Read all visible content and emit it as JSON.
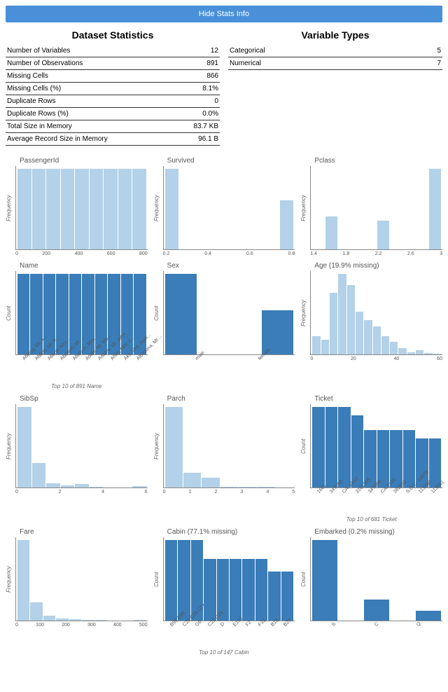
{
  "button_label": "Hide Stats Info",
  "colors": {
    "light": "#b3d1e8",
    "dark": "#3a7db8",
    "btn": "#4a90d9"
  },
  "stats": {
    "left": {
      "title": "Dataset Statistics",
      "rows": [
        [
          "Number of Variables",
          "12"
        ],
        [
          "Number of Observations",
          "891"
        ],
        [
          "Missing Cells",
          "866"
        ],
        [
          "Missing Cells (%)",
          "8.1%"
        ],
        [
          "Duplicate Rows",
          "0"
        ],
        [
          "Duplicate Rows (%)",
          "0.0%"
        ],
        [
          "Total Size in Memory",
          "83.7 KB"
        ],
        [
          "Average Record Size in Memory",
          "96.1 B"
        ]
      ]
    },
    "right": {
      "title": "Variable Types",
      "rows": [
        [
          "Categorical",
          "5"
        ],
        [
          "Numerical",
          "7"
        ]
      ]
    }
  },
  "charts": [
    {
      "title": "PassengerId",
      "ylabel": "Frequency",
      "color": "light",
      "values": [
        98,
        98,
        98,
        98,
        98,
        98,
        98,
        98,
        98
      ],
      "xticks": [
        "0",
        "200",
        "400",
        "600",
        "800"
      ],
      "rot": false,
      "caption": ""
    },
    {
      "title": "Survived",
      "ylabel": "Frequency",
      "color": "light",
      "values": [
        98,
        0,
        0,
        0,
        0,
        0,
        0,
        0,
        60
      ],
      "xticks": [
        "0.2",
        "0.4",
        "0.6",
        "0.8"
      ],
      "rot": false,
      "caption": ""
    },
    {
      "title": "Pclass",
      "ylabel": "Frequency",
      "color": "light",
      "values": [
        0,
        40,
        0,
        0,
        0,
        35,
        0,
        0,
        0,
        98
      ],
      "xticks": [
        "1.4",
        "1.8",
        "2.2",
        "2.6",
        "3"
      ],
      "rot": false,
      "caption": ""
    },
    {
      "title": "Name",
      "ylabel": "Count",
      "color": "dark",
      "values": [
        98,
        98,
        98,
        98,
        98,
        98,
        98,
        98,
        98,
        98
      ],
      "xticks": [
        "Abbing, Mr. A...",
        "Abbott, Mr. R...",
        "Abbott, Mrs. ...",
        "Abelson, Mr. ...",
        "Abelson, Mrs....",
        "Adahl, Mr. Ma...",
        "Adams, Mr. John",
        "Ahlin, Mrs. J...",
        "Aks, Mrs. Sam...",
        "Albimona, Mr...."
      ],
      "rot": true,
      "caption": "Top 10 of 891 Name"
    },
    {
      "title": "Sex",
      "ylabel": "Count",
      "color": "dark",
      "values": [
        98,
        0,
        0,
        54
      ],
      "xticks": [
        "male",
        "female"
      ],
      "rot": true,
      "caption": ""
    },
    {
      "title": "Age (19.9% missing)",
      "ylabel": "Frequency",
      "color": "light",
      "values": [
        22,
        18,
        75,
        98,
        85,
        52,
        42,
        34,
        22,
        15,
        8,
        3,
        5,
        2,
        1
      ],
      "xticks": [
        "0",
        "20",
        "40",
        "60"
      ],
      "rot": false,
      "caption": ""
    },
    {
      "title": "SibSp",
      "ylabel": "Frequency",
      "color": "light",
      "values": [
        98,
        30,
        5,
        3,
        4,
        1,
        0,
        0,
        2
      ],
      "xticks": [
        "0",
        "2",
        "4",
        "6"
      ],
      "rot": false,
      "caption": ""
    },
    {
      "title": "Parch",
      "ylabel": "Frequency",
      "color": "light",
      "values": [
        98,
        18,
        12,
        1,
        1,
        1,
        0
      ],
      "xticks": [
        "0",
        "1",
        "2",
        "3",
        "4",
        "5"
      ],
      "rot": false,
      "caption": ""
    },
    {
      "title": "Ticket",
      "ylabel": "Count",
      "color": "dark",
      "values": [
        98,
        98,
        98,
        88,
        70,
        70,
        70,
        70,
        60,
        60
      ],
      "xticks": [
        "1601",
        "347082",
        "CA. 2343",
        "3101295",
        "347088",
        "CA 2144",
        "382652",
        "S.O.C. 14879",
        "113760",
        "113781"
      ],
      "rot": true,
      "caption": "Top 10 of 681 Ticket"
    },
    {
      "title": "Fare",
      "ylabel": "Frequency",
      "color": "light",
      "values": [
        98,
        22,
        6,
        3,
        2,
        1,
        1,
        0,
        0,
        1
      ],
      "xticks": [
        "0",
        "100",
        "200",
        "300",
        "400",
        "500"
      ],
      "rot": false,
      "caption": ""
    },
    {
      "title": "Cabin (77.1% missing)",
      "ylabel": "Count",
      "color": "dark",
      "values": [
        98,
        98,
        98,
        75,
        75,
        75,
        75,
        75,
        60,
        60
      ],
      "xticks": [
        "B96 B98",
        "C23 C25 C27",
        "G6",
        "C22 C26",
        "D",
        "E101",
        "F2",
        "F33",
        "B18",
        "B20"
      ],
      "rot": true,
      "caption": "Top 10 of 147 Cabin"
    },
    {
      "title": "Embarked (0.2% missing)",
      "ylabel": "Count",
      "color": "dark",
      "values": [
        98,
        0,
        26,
        0,
        12
      ],
      "xticks": [
        "S",
        "C",
        "Q"
      ],
      "rot": true,
      "caption": ""
    }
  ]
}
